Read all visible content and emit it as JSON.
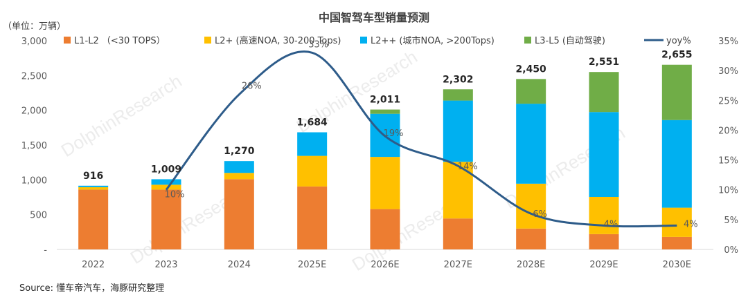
{
  "colors": {
    "l1": "#ED7D31",
    "l2p": "#FFC000",
    "l2pp": "#00B0F0",
    "l3": "#70AD47",
    "yoy": "#2E5C8A",
    "axis_text": "#595959",
    "title": "#404040"
  },
  "watermark": "DolphinResearch",
  "source": "Source: 懂车帝汽车，海豚研究整理",
  "chart_data": {
    "type": "bar",
    "stacked": true,
    "title": "中国智驾车型销量预测",
    "ylabel": "（单位：万辆）",
    "categories": [
      "2022",
      "2023",
      "2024",
      "2025E",
      "2026E",
      "2027E",
      "2028E",
      "2029E",
      "2030E"
    ],
    "ylim": [
      0,
      3000
    ],
    "y_ticks": [
      0,
      500,
      1000,
      1500,
      2000,
      2500,
      3000
    ],
    "y_tick_labels": [
      "-",
      "500",
      "1,000",
      "1,500",
      "2,000",
      "2,500",
      "3,000"
    ],
    "y2lim": [
      0,
      35
    ],
    "y2_ticks": [
      0,
      5,
      10,
      15,
      20,
      25,
      30,
      35
    ],
    "y2_tick_labels": [
      "0%",
      "5%",
      "10%",
      "15%",
      "20%",
      "25%",
      "30%",
      "35%"
    ],
    "series": [
      {
        "name": "L1-L2 （<30 TOPS）",
        "key": "l1",
        "values": [
          860,
          860,
          1010,
          905,
          580,
          445,
          300,
          220,
          180
        ]
      },
      {
        "name": "L2+ (高速NOA, 30-200 Tops)",
        "key": "l2p",
        "values": [
          35,
          70,
          90,
          440,
          750,
          815,
          645,
          535,
          420
        ]
      },
      {
        "name": "L2++ (城市NOA, >200Tops)",
        "key": "l2pp",
        "values": [
          21,
          79,
          170,
          339,
          620,
          880,
          1150,
          1220,
          1260
        ]
      },
      {
        "name": "L3-L5 (自动驾驶)",
        "key": "l3",
        "values": [
          0,
          0,
          0,
          0,
          61,
          162,
          355,
          576,
          795
        ]
      }
    ],
    "totals": [
      916,
      1009,
      1270,
      1684,
      2011,
      2302,
      2450,
      2551,
      2655
    ],
    "total_labels": [
      "916",
      "1,009",
      "1,270",
      "1,684",
      "2,011",
      "2,302",
      "2,450",
      "2,551",
      "2,655"
    ],
    "yoy": {
      "name": "yoy%",
      "values": [
        null,
        10,
        26,
        33,
        19,
        14,
        6,
        4,
        4
      ],
      "labels": [
        null,
        "10%",
        "26%",
        "33%",
        "19%",
        "14%",
        "6%",
        "4%",
        "4%"
      ]
    }
  }
}
